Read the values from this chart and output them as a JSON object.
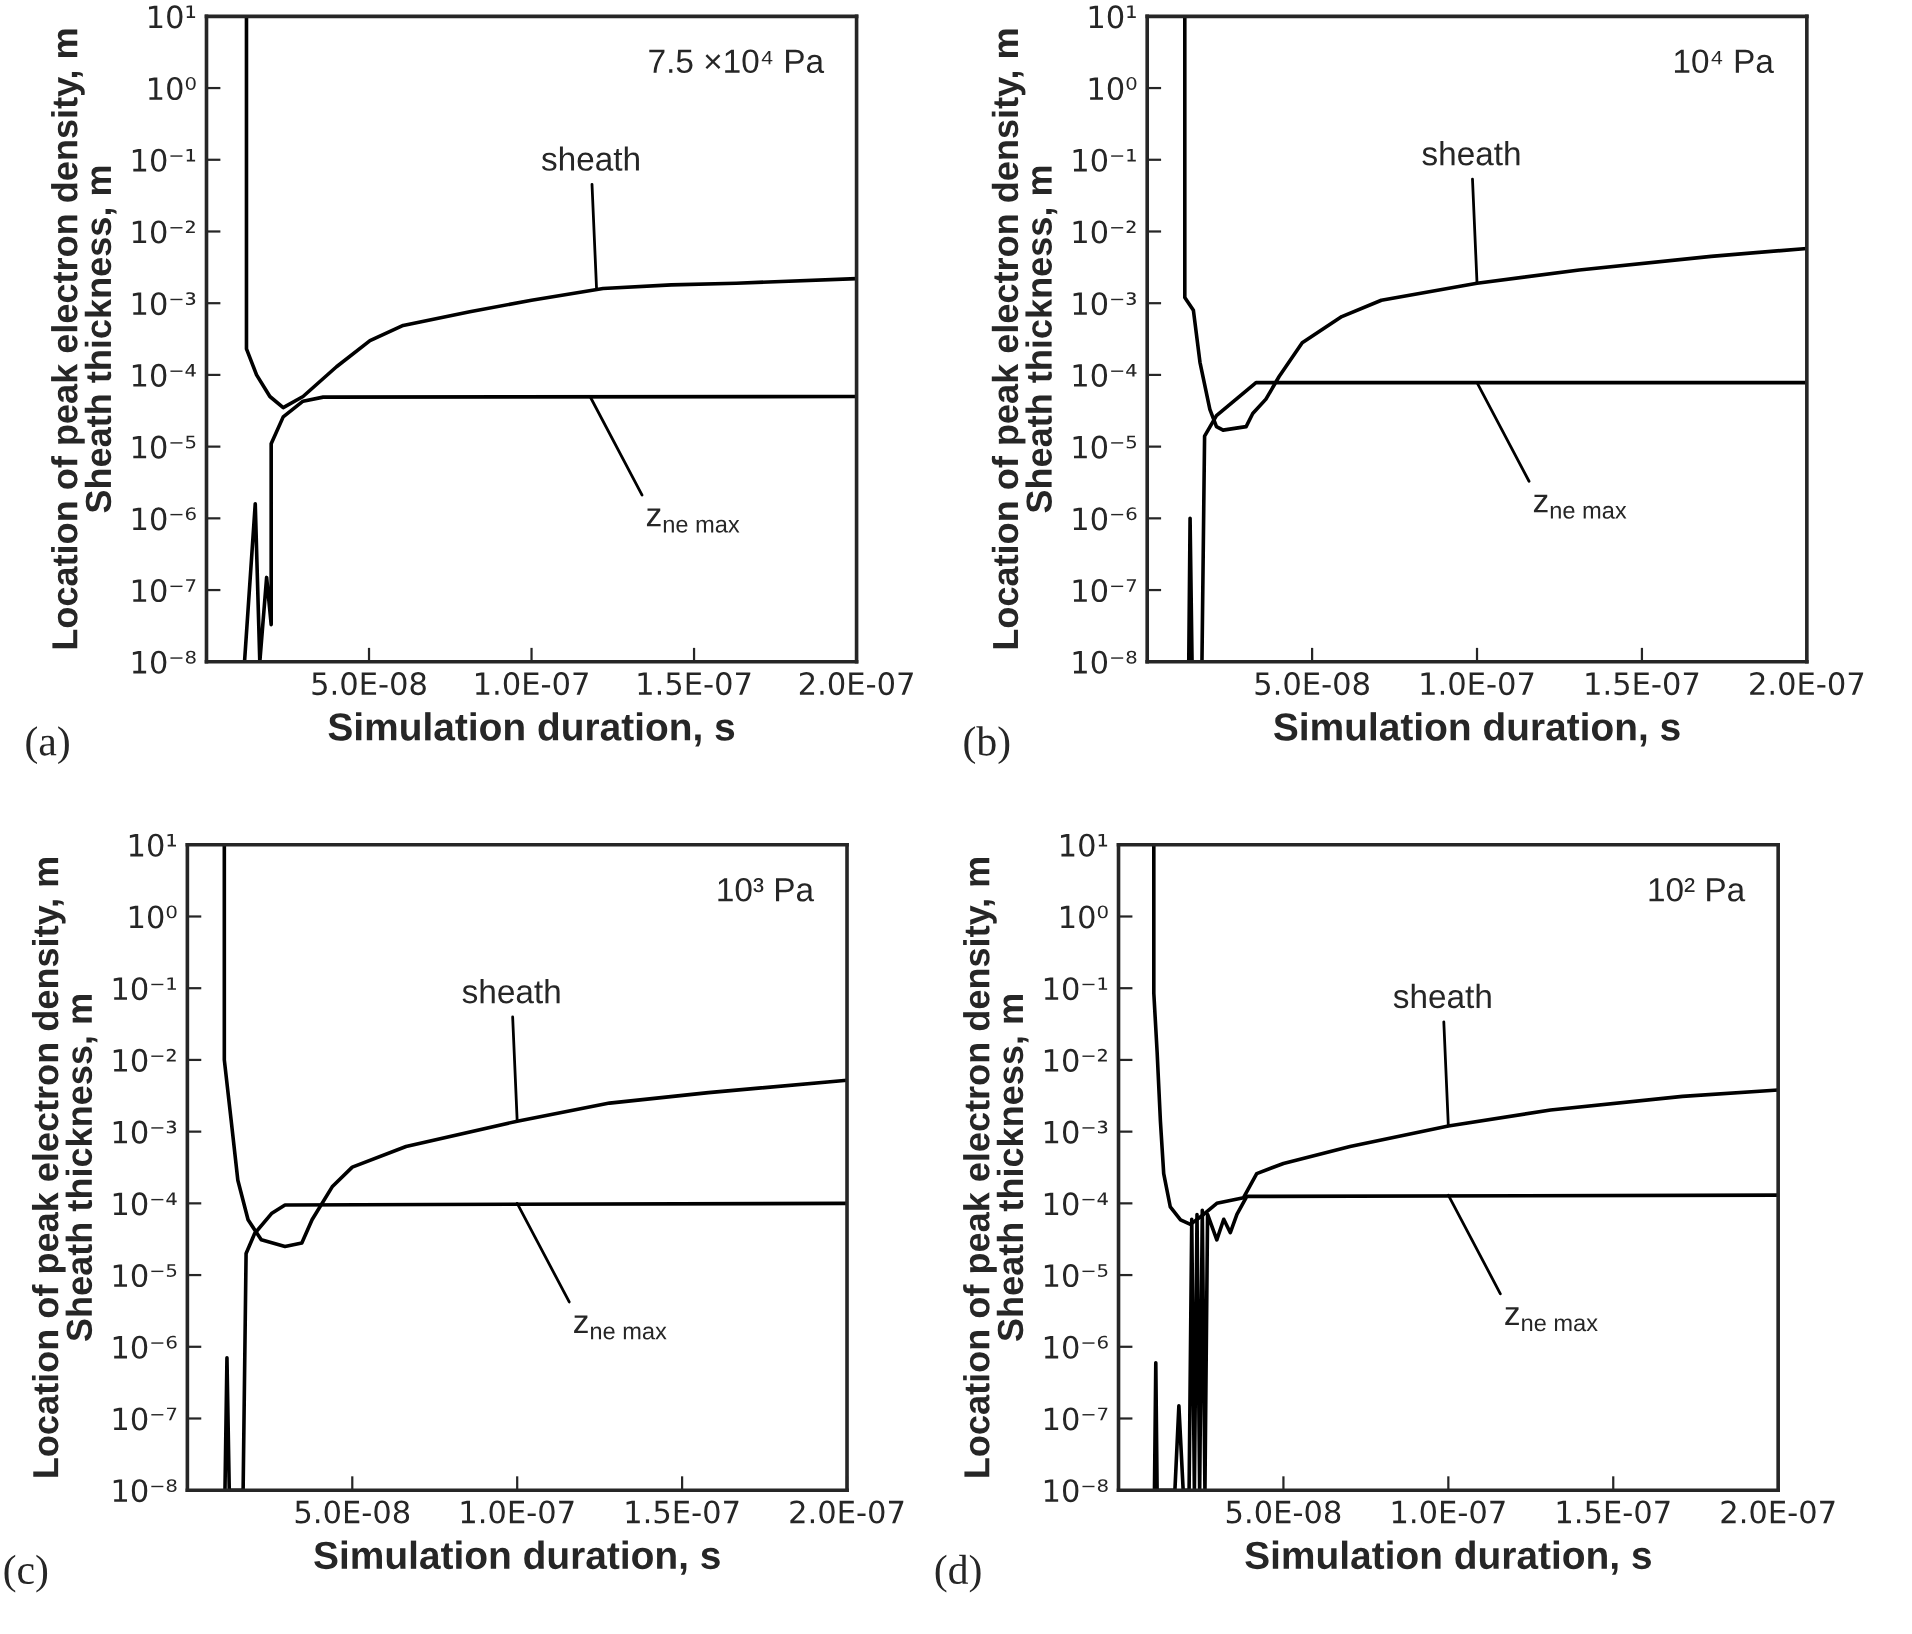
{
  "chart_data": [
    {
      "type": "line",
      "xlabel": "Simulation duration, s",
      "ylabel": "Location of peak electron density, m\nSheath thickness, m",
      "log": "y",
      "grid": false,
      "xlim": [
        0,
        2e-07
      ],
      "ylim": [
        1e-08,
        10
      ],
      "xticks": [
        {
          "value": 5e-08,
          "label": "5.0E-08"
        },
        {
          "value": 1e-07,
          "label": "1.0E-07"
        },
        {
          "value": 1.5e-07,
          "label": "1.5E-07"
        },
        {
          "value": 2e-07,
          "label": "2.0E-07"
        }
      ],
      "yticks": [
        {
          "value": 10,
          "label": "10¹"
        },
        {
          "value": 1,
          "label": "10⁰"
        },
        {
          "value": 0.1,
          "label": "10⁻¹"
        },
        {
          "value": 0.01,
          "label": "10⁻²"
        },
        {
          "value": 0.001,
          "label": "10⁻³"
        },
        {
          "value": 0.0001,
          "label": "10⁻⁴"
        },
        {
          "value": 1e-05,
          "label": "10⁻⁵"
        },
        {
          "value": 1e-06,
          "label": "10⁻⁶"
        },
        {
          "value": 1e-07,
          "label": "10⁻⁷"
        },
        {
          "value": 1e-08,
          "label": "10⁻⁸"
        }
      ],
      "series": [
        {
          "color": "#000000",
          "x": [
            1.23e-08,
            1.23e-08,
            1.54e-08,
            1.95e-08,
            2.36e-08,
            2.97e-08,
            4e-08,
            5.03e-08,
            6.05e-08,
            8.1e-08,
            1e-07,
            1.22e-07,
            1.43e-07,
            1.63e-07,
            2e-07
          ],
          "values": [
            10,
            0.00023,
            0.0001,
            5e-05,
            3.5e-05,
            5e-05,
            0.00013,
            0.0003,
            0.00049,
            0.00076,
            0.0011,
            0.0016,
            0.0018,
            0.0019,
            0.0022
          ]
        },
        {
          "color": "#000000",
          "x": [
            1.17e-08,
            1.5e-08,
            1.64e-08,
            1.85e-08,
            1.99e-08,
            1.99e-08,
            2.36e-08,
            2.97e-08,
            3.59e-08,
            2e-07
          ],
          "values": [
            1e-08,
            1.6e-06,
            1e-08,
            1.5e-07,
            3.3e-08,
            1.1e-05,
            2.6e-05,
            4.3e-05,
            4.9e-05,
            5e-05
          ]
        }
      ],
      "annotations": [
        {
          "text": "sheath",
          "x": 1.2e-07,
          "y": 0.0016
        },
        {
          "text": "z$_{ne max}$",
          "x": 1.18e-07,
          "y": 5e-05
        },
        "7.5 ×10⁴ Pa",
        "(a)"
      ]
    },
    {
      "type": "line",
      "xlabel": "Simulation duration, s",
      "ylabel": "Location of peak electron density, m\nSheath thickness, m",
      "log": "y",
      "grid": false,
      "xlim": [
        0,
        2e-07
      ],
      "ylim": [
        1e-08,
        10
      ],
      "xticks": [
        {
          "value": 5e-08,
          "label": "5.0E-08"
        },
        {
          "value": 1e-07,
          "label": "1.0E-07"
        },
        {
          "value": 1.5e-07,
          "label": "1.5E-07"
        },
        {
          "value": 2e-07,
          "label": "2.0E-07"
        }
      ],
      "yticks": [
        {
          "value": 10,
          "label": "10¹"
        },
        {
          "value": 1,
          "label": "10⁰"
        },
        {
          "value": 0.1,
          "label": "10⁻¹"
        },
        {
          "value": 0.01,
          "label": "10⁻²"
        },
        {
          "value": 0.001,
          "label": "10⁻³"
        },
        {
          "value": 0.0001,
          "label": "10⁻⁴"
        },
        {
          "value": 1e-05,
          "label": "10⁻⁵"
        },
        {
          "value": 1e-06,
          "label": "10⁻⁶"
        },
        {
          "value": 1e-07,
          "label": "10⁻⁷"
        },
        {
          "value": 1e-08,
          "label": "10⁻⁸"
        }
      ],
      "series": [
        {
          "color": "#000000",
          "x": [
            1.14e-08,
            1.14e-08,
            1.4e-08,
            1.6e-08,
            1.9e-08,
            2.1e-08,
            2.3e-08,
            3e-08,
            3.2e-08,
            3.6e-08,
            4e-08,
            4.7e-08,
            5.9e-08,
            7.1e-08,
            1e-07,
            1.31e-07,
            1.71e-07,
            2e-07
          ],
          "values": [
            10,
            0.0012,
            0.0008,
            0.00015,
            3.3e-05,
            1.9e-05,
            1.7e-05,
            1.9e-05,
            2.9e-05,
            4.6e-05,
            9.5e-05,
            0.00028,
            0.00065,
            0.0011,
            0.0019,
            0.0029,
            0.0045,
            0.0058
          ]
        },
        {
          "color": "#000000",
          "x": [
            1.26e-08,
            1.3e-08,
            1.36e-08,
            1.66e-08,
            1.74e-08,
            2.1e-08,
            2.7e-08,
            3.3e-08,
            2e-07
          ],
          "values": [
            1e-08,
            1e-06,
            1e-08,
            1e-08,
            1.4e-05,
            2.7e-05,
            4.6e-05,
            7.8e-05,
            7.8e-05
          ]
        }
      ],
      "annotations": [
        {
          "text": "sheath",
          "x": 1e-07,
          "y": 0.0019
        },
        {
          "text": "z$_{ne max}$",
          "x": 1e-07,
          "y": 7.8e-05
        },
        "10⁴ Pa",
        "(b)"
      ]
    },
    {
      "type": "line",
      "xlabel": "Simulation duration, s",
      "ylabel": "Location of peak electron density, m\nSheath thickness, m",
      "log": "y",
      "grid": false,
      "xlim": [
        0,
        2e-07
      ],
      "ylim": [
        1e-08,
        10
      ],
      "xticks": [
        {
          "value": 5e-08,
          "label": "5.0E-08"
        },
        {
          "value": 1e-07,
          "label": "1.0E-07"
        },
        {
          "value": 1.5e-07,
          "label": "1.5E-07"
        },
        {
          "value": 2e-07,
          "label": "2.0E-07"
        }
      ],
      "yticks": [
        {
          "value": 10,
          "label": "10¹"
        },
        {
          "value": 1,
          "label": "10⁰"
        },
        {
          "value": 0.1,
          "label": "10⁻¹"
        },
        {
          "value": 0.01,
          "label": "10⁻²"
        },
        {
          "value": 0.001,
          "label": "10⁻³"
        },
        {
          "value": 0.0001,
          "label": "10⁻⁴"
        },
        {
          "value": 1e-05,
          "label": "10⁻⁵"
        },
        {
          "value": 1e-06,
          "label": "10⁻⁶"
        },
        {
          "value": 1e-07,
          "label": "10⁻⁷"
        },
        {
          "value": 1e-08,
          "label": "10⁻⁸"
        }
      ],
      "series": [
        {
          "color": "#000000",
          "x": [
            1.12e-08,
            1.12e-08,
            1.33e-08,
            1.53e-08,
            1.84e-08,
            2.24e-08,
            2.96e-08,
            3.47e-08,
            3.78e-08,
            4.39e-08,
            5e-08,
            6.63e-08,
            1e-07,
            1.28e-07,
            1.58e-07,
            2e-07
          ],
          "values": [
            10,
            0.01,
            0.0014,
            0.00021,
            5.9e-05,
            3.1e-05,
            2.5e-05,
            2.8e-05,
            5.9e-05,
            0.00017,
            0.00032,
            0.00062,
            0.0014,
            0.0025,
            0.0035,
            0.0052
          ]
        },
        {
          "color": "#000000",
          "x": [
            1.14e-08,
            1.2e-08,
            1.27e-08,
            1.69e-08,
            1.78e-08,
            2.04e-08,
            2.55e-08,
            2.96e-08,
            2e-07
          ],
          "values": [
            1e-08,
            7e-07,
            1e-08,
            1e-08,
            2e-05,
            3.8e-05,
            7.2e-05,
            9.5e-05,
            0.0001
          ]
        }
      ],
      "annotations": [
        {
          "text": "sheath",
          "x": 1e-07,
          "y": 0.0014
        },
        {
          "text": "z$_{ne max}$",
          "x": 1e-07,
          "y": 0.0001
        },
        "10³ Pa",
        "(c)"
      ]
    },
    {
      "type": "line",
      "xlabel": "Simulation duration, s",
      "ylabel": "Location of peak electron density, m\nSheath thickness, m",
      "log": "y",
      "grid": false,
      "xlim": [
        0,
        2e-07
      ],
      "ylim": [
        1e-08,
        10
      ],
      "xticks": [
        {
          "value": 5e-08,
          "label": "5.0E-08"
        },
        {
          "value": 1e-07,
          "label": "1.0E-07"
        },
        {
          "value": 1.5e-07,
          "label": "1.5E-07"
        },
        {
          "value": 2e-07,
          "label": "2.0E-07"
        }
      ],
      "yticks": [
        {
          "value": 10,
          "label": "10¹"
        },
        {
          "value": 1,
          "label": "10⁰"
        },
        {
          "value": 0.1,
          "label": "10⁻¹"
        },
        {
          "value": 0.01,
          "label": "10⁻²"
        },
        {
          "value": 0.001,
          "label": "10⁻³"
        },
        {
          "value": 0.0001,
          "label": "10⁻⁴"
        },
        {
          "value": 1e-05,
          "label": "10⁻⁵"
        },
        {
          "value": 1e-06,
          "label": "10⁻⁶"
        },
        {
          "value": 1e-07,
          "label": "10⁻⁷"
        },
        {
          "value": 1e-08,
          "label": "10⁻⁸"
        }
      ],
      "series": [
        {
          "color": "#000000",
          "x": [
            1.07e-08,
            1.07e-08,
            1.17e-08,
            1.27e-08,
            1.37e-08,
            1.57e-08,
            1.88e-08,
            2.18e-08,
            2.58e-08,
            2.98e-08,
            3.79e-08,
            4.19e-08,
            5e-08,
            7.02e-08,
            1e-07,
            1.31e-07,
            1.71e-07,
            2e-07
          ],
          "values": [
            10,
            0.085,
            0.013,
            0.0014,
            0.00026,
            8.9e-05,
            5.9e-05,
            5.1e-05,
            7e-05,
            0.0001,
            0.00012,
            0.00026,
            0.00036,
            0.00062,
            0.0012,
            0.002,
            0.0031,
            0.0038
          ]
        },
        {
          "color": "#000000",
          "x": [
            1.09e-08,
            1.13e-08,
            1.17e-08,
            1.71e-08,
            1.83e-08,
            1.96e-08,
            2.14e-08,
            2.22e-08,
            2.3e-08,
            2.38e-08,
            2.46e-08,
            2.54e-08,
            2.62e-08,
            2.7e-08,
            2.98e-08,
            3.19e-08,
            3.39e-08,
            3.59e-08,
            3.89e-08,
            2e-07
          ],
          "values": [
            1e-08,
            6e-07,
            1e-08,
            1e-08,
            1.5e-07,
            1e-08,
            1e-08,
            6e-05,
            1e-08,
            7e-05,
            1e-08,
            8e-05,
            1e-08,
            7e-05,
            3.1e-05,
            6e-05,
            3.9e-05,
            7e-05,
            0.000125,
            0.00013
          ]
        }
      ],
      "annotations": [
        {
          "text": "sheath",
          "x": 1e-07,
          "y": 0.0012
        },
        {
          "text": "z$_{ne max}$",
          "x": 1e-07,
          "y": 0.00013
        },
        "10² Pa",
        "(d)"
      ]
    }
  ]
}
